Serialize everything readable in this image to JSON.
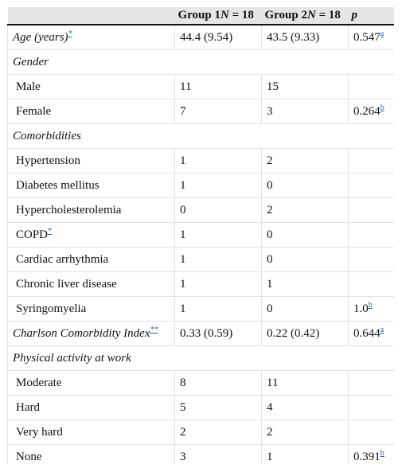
{
  "header": {
    "col1": "",
    "col2_main": "Group 1",
    "col2_n": "N",
    "col2_eq": " = 18",
    "col3_main": "Group 2",
    "col3_n": "N",
    "col3_eq": " = 18",
    "col4": "p"
  },
  "rows": {
    "age": {
      "label": "Age (years)",
      "fn": "*",
      "g1": "44.4 (9.54)",
      "g2": "43.5 (9.33)",
      "p": "0.547",
      "pfn": "a"
    },
    "gender": {
      "label": "Gender"
    },
    "male": {
      "label": "Male",
      "g1": "11",
      "g2": "15"
    },
    "female": {
      "label": "Female",
      "g1": "7",
      "g2": "3",
      "p": "0.264",
      "pfn": "b"
    },
    "comorbidities": {
      "label": "Comorbidities"
    },
    "hypertension": {
      "label": "Hypertension",
      "g1": "1",
      "g2": "2"
    },
    "diabetes": {
      "label": "Diabetes mellitus",
      "g1": "1",
      "g2": "0"
    },
    "hyperchol": {
      "label": "Hypercholesterolemia",
      "g1": "0",
      "g2": "2"
    },
    "copd": {
      "label": "COPD",
      "fn": "*",
      "g1": "1",
      "g2": "0"
    },
    "arrhythmia": {
      "label": "Cardiac arrhythmia",
      "g1": "1",
      "g2": "0"
    },
    "liver": {
      "label": "Chronic liver disease",
      "g1": "1",
      "g2": "1"
    },
    "syringo": {
      "label": "Syringomyelia",
      "g1": "1",
      "g2": "0",
      "p": "1.0",
      "pfn": "b"
    },
    "charlson": {
      "label": "Charlson Comorbidity Index",
      "fn": "**",
      "g1": "0.33 (0.59)",
      "g2": "0.22 (0.42)",
      "p": "0.644",
      "pfn": "a"
    },
    "activity": {
      "label": "Physical activity at work"
    },
    "moderate": {
      "label": "Moderate",
      "g1": "8",
      "g2": "11"
    },
    "hard": {
      "label": "Hard",
      "g1": "5",
      "g2": "4"
    },
    "veryhard": {
      "label": "Very hard",
      "g1": "2",
      "g2": "2"
    },
    "none": {
      "label": "None",
      "g1": "3",
      "g2": "1",
      "p": "0.391",
      "pfn": "b"
    }
  }
}
